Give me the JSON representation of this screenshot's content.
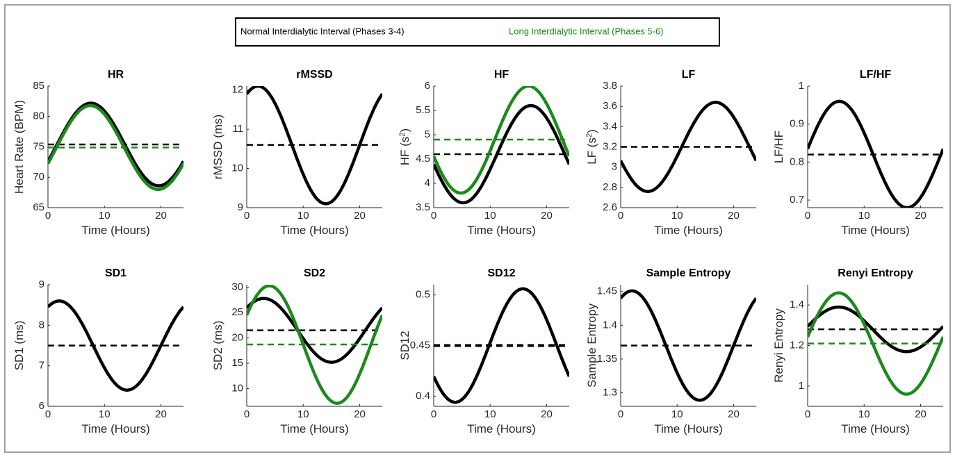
{
  "legend": {
    "normal": {
      "label": "Normal Interdialytic Interval (Phases 3-4)",
      "color": "#000000"
    },
    "long": {
      "label": "Long Interdialytic Interval (Phases 5-6)",
      "color": "#1a8a1a"
    }
  },
  "chart_data": [
    {
      "type": "line",
      "title": "HR",
      "xlabel": "Time (Hours)",
      "ylabel": "Heart Rate (BPM)",
      "xlim": [
        0,
        24
      ],
      "ylim": [
        65,
        85
      ],
      "xticks": [
        0,
        10,
        20
      ],
      "yticks": [
        65,
        70,
        75,
        80,
        85
      ],
      "series": [
        {
          "key": "normal",
          "mesor": 75.4,
          "amplitude": 6.8,
          "peak_hour": 7.6,
          "curve_color": "#000000",
          "mean_color": "#000000"
        },
        {
          "key": "long",
          "mesor": 74.9,
          "amplitude": 6.9,
          "peak_hour": 7.5,
          "curve_color": "#1a8a1a",
          "mean_color": "#1a8a1a"
        }
      ]
    },
    {
      "type": "line",
      "title": "rMSSD",
      "xlabel": "Time (Hours)",
      "ylabel": "rMSSD (ms)",
      "xlim": [
        0,
        24
      ],
      "ylim": [
        9,
        12.1
      ],
      "xticks": [
        0,
        10,
        20
      ],
      "yticks": [
        9,
        10,
        11,
        12
      ],
      "series": [
        {
          "key": "normal",
          "mesor": 10.6,
          "amplitude": 1.5,
          "peak_hour": 2,
          "curve_color": "#000000",
          "mean_color": "#000000"
        }
      ]
    },
    {
      "type": "line",
      "title": "HF",
      "xlabel": "Time (Hours)",
      "ylabel": "HF (s²)",
      "xlim": [
        0,
        24
      ],
      "ylim": [
        3.5,
        6
      ],
      "xticks": [
        0,
        10,
        20
      ],
      "yticks": [
        3.5,
        4,
        4.5,
        5,
        5.5,
        6
      ],
      "series": [
        {
          "key": "normal",
          "mesor": 4.6,
          "amplitude": 1.0,
          "peak_hour": 17.2,
          "curve_color": "#000000",
          "mean_color": "#000000"
        },
        {
          "key": "long",
          "mesor": 4.9,
          "amplitude": 1.1,
          "peak_hour": 16.8,
          "curve_color": "#1a8a1a",
          "mean_color": "#1a8a1a"
        }
      ]
    },
    {
      "type": "line",
      "title": "LF",
      "xlabel": "Time (Hours)",
      "ylabel": "LF (s²)",
      "xlim": [
        0,
        24
      ],
      "ylim": [
        2.6,
        3.8
      ],
      "xticks": [
        0,
        10,
        20
      ],
      "yticks": [
        2.6,
        2.8,
        3,
        3.2,
        3.4,
        3.6,
        3.8
      ],
      "series": [
        {
          "key": "normal",
          "mesor": 3.2,
          "amplitude": 0.44,
          "peak_hour": 16.8,
          "curve_color": "#000000",
          "mean_color": "#000000"
        }
      ]
    },
    {
      "type": "line",
      "title": "LF/HF",
      "xlabel": "Time (Hours)",
      "ylabel": "LF/HF",
      "xlim": [
        0,
        24
      ],
      "ylim": [
        0.68,
        1.0
      ],
      "xticks": [
        0,
        10,
        20
      ],
      "yticks": [
        0.7,
        0.8,
        0.9,
        1
      ],
      "series": [
        {
          "key": "normal",
          "mesor": 0.82,
          "amplitude": 0.14,
          "peak_hour": 5.6,
          "curve_color": "#000000",
          "mean_color": "#000000"
        }
      ]
    },
    {
      "type": "line",
      "title": "SD1",
      "xlabel": "Time (Hours)",
      "ylabel": "SD1 (ms)",
      "xlim": [
        0,
        24
      ],
      "ylim": [
        6,
        9
      ],
      "xticks": [
        0,
        10,
        20
      ],
      "yticks": [
        6,
        7,
        8,
        9
      ],
      "series": [
        {
          "key": "normal",
          "mesor": 7.5,
          "amplitude": 1.1,
          "peak_hour": 2,
          "curve_color": "#000000",
          "mean_color": "#000000"
        }
      ]
    },
    {
      "type": "line",
      "title": "SD2",
      "xlabel": "Time (Hours)",
      "ylabel": "SD2 (ms)",
      "xlim": [
        0,
        24
      ],
      "ylim": [
        6.5,
        30.5
      ],
      "xticks": [
        0,
        10,
        20
      ],
      "yticks": [
        10,
        15,
        20,
        25,
        30
      ],
      "series": [
        {
          "key": "normal",
          "mesor": 21.5,
          "amplitude": 6.3,
          "peak_hour": 3,
          "curve_color": "#000000",
          "mean_color": "#000000"
        },
        {
          "key": "long",
          "mesor": 18.7,
          "amplitude": 11.6,
          "peak_hour": 4,
          "curve_color": "#1a8a1a",
          "mean_color": "#1a8a1a"
        }
      ]
    },
    {
      "type": "line",
      "title": "SD12",
      "xlabel": "Time (Hours)",
      "ylabel": "SD12",
      "xlim": [
        0,
        24
      ],
      "ylim": [
        0.39,
        0.51
      ],
      "xticks": [
        0,
        10,
        20
      ],
      "yticks": [
        0.4,
        0.45,
        0.5
      ],
      "series": [
        {
          "key": "normal",
          "mesor": 0.45,
          "amplitude": 0.056,
          "peak_hour": 15.8,
          "curve_color": "#000000",
          "mean_color": "#000000",
          "mean_width": 4
        }
      ]
    },
    {
      "type": "line",
      "title": "Sample Entropy",
      "xlabel": "Time (Hours)",
      "ylabel": "Sample Entropy",
      "xlim": [
        0,
        24
      ],
      "ylim": [
        1.28,
        1.46
      ],
      "xticks": [
        0,
        10,
        20
      ],
      "yticks": [
        1.3,
        1.35,
        1.4,
        1.45
      ],
      "series": [
        {
          "key": "normal",
          "mesor": 1.37,
          "amplitude": 0.081,
          "peak_hour": 2,
          "curve_color": "#000000",
          "mean_color": "#000000"
        }
      ]
    },
    {
      "type": "line",
      "title": "Renyi Entropy",
      "xlabel": "Time (Hours)",
      "ylabel": "Renyi Entropy",
      "xlim": [
        0,
        24
      ],
      "ylim": [
        0.9,
        1.5
      ],
      "xticks": [
        0,
        10,
        20
      ],
      "yticks": [
        1,
        1.2,
        1.4
      ],
      "series": [
        {
          "key": "normal",
          "mesor": 1.28,
          "amplitude": 0.11,
          "peak_hour": 5.5,
          "curve_color": "#000000",
          "mean_color": "#000000"
        },
        {
          "key": "long",
          "mesor": 1.21,
          "amplitude": 0.25,
          "peak_hour": 5.5,
          "curve_color": "#1a8a1a",
          "mean_color": "#1a8a1a"
        }
      ]
    }
  ]
}
